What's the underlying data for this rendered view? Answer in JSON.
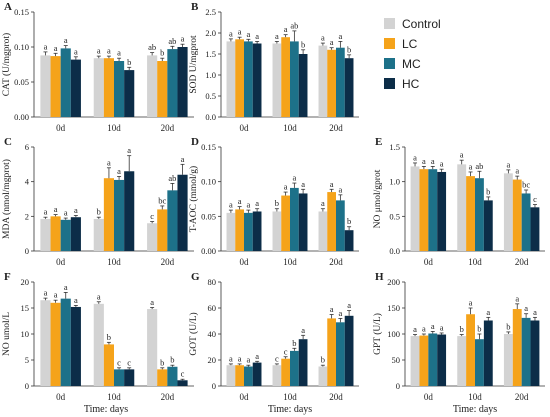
{
  "colors": {
    "Control": "#d3d3d3",
    "LC": "#f5a31a",
    "MC": "#1d7189",
    "HC": "#0c2d48"
  },
  "legend": {
    "placement": "top-right",
    "items": [
      "Control",
      "LC",
      "MC",
      "HC"
    ]
  },
  "x_axis_caption": "Time: days",
  "chart_data": [
    {
      "panel": "A",
      "type": "bar",
      "ylabel": "CAT (U/mgprot)",
      "categories": [
        "0d",
        "10d",
        "20d"
      ],
      "ylim": [
        0,
        0.15
      ],
      "yticks": [
        "0.00",
        "0.05",
        "0.10",
        "0.15"
      ],
      "series": [
        {
          "name": "Control",
          "values": [
            0.088,
            0.084,
            0.088
          ],
          "err": [
            0.005,
            0.003,
            0.004
          ]
        },
        {
          "name": "LC",
          "values": [
            0.087,
            0.084,
            0.08
          ],
          "err": [
            0.004,
            0.003,
            0.004
          ]
        },
        {
          "name": "MC",
          "values": [
            0.098,
            0.08,
            0.097
          ],
          "err": [
            0.004,
            0.004,
            0.004
          ]
        },
        {
          "name": "HC",
          "values": [
            0.082,
            0.067,
            0.1
          ],
          "err": [
            0.004,
            0.004,
            0.004
          ]
        }
      ],
      "letters": [
        [
          "a",
          "a",
          "a",
          "a"
        ],
        [
          "a",
          "a",
          "a",
          "b"
        ],
        [
          "ab",
          "b",
          "ab",
          "a"
        ]
      ]
    },
    {
      "panel": "B",
      "type": "bar",
      "ylabel": "SOD U/mgprot",
      "categories": [
        "0d",
        "10d",
        "20d"
      ],
      "ylim": [
        0,
        2.5
      ],
      "yticks": [
        "0.0",
        "0.5",
        "1.0",
        "1.5",
        "2.0",
        "2.5"
      ],
      "series": [
        {
          "name": "Control",
          "values": [
            1.8,
            1.75,
            1.7
          ],
          "err": [
            0.06,
            0.05,
            0.06
          ]
        },
        {
          "name": "LC",
          "values": [
            1.85,
            1.9,
            1.6
          ],
          "err": [
            0.05,
            0.06,
            0.05
          ]
        },
        {
          "name": "MC",
          "values": [
            1.8,
            1.8,
            1.65
          ],
          "err": [
            0.05,
            0.25,
            0.15
          ]
        },
        {
          "name": "HC",
          "values": [
            1.75,
            1.5,
            1.4
          ],
          "err": [
            0.05,
            0.1,
            0.08
          ]
        }
      ],
      "letters": [
        [
          "a",
          "a",
          "a",
          "a"
        ],
        [
          "a",
          "a",
          "ab",
          "b"
        ],
        [
          "a",
          "a",
          "a",
          "b"
        ]
      ]
    },
    {
      "panel": "C",
      "type": "bar",
      "ylabel": "MDA (nmol/mgprot)",
      "categories": [
        "0d",
        "10d",
        "20d"
      ],
      "ylim": [
        0,
        6
      ],
      "yticks": [
        "0",
        "2",
        "4",
        "6"
      ],
      "series": [
        {
          "name": "Control",
          "values": [
            1.85,
            1.85,
            1.6
          ],
          "err": [
            0.1,
            0.1,
            0.1
          ]
        },
        {
          "name": "LC",
          "values": [
            2.0,
            4.2,
            2.4
          ],
          "err": [
            0.1,
            0.6,
            0.2
          ]
        },
        {
          "name": "MC",
          "values": [
            1.8,
            4.1,
            3.5
          ],
          "err": [
            0.1,
            0.2,
            0.4
          ]
        },
        {
          "name": "HC",
          "values": [
            1.95,
            4.6,
            4.4
          ],
          "err": [
            0.1,
            0.9,
            0.6
          ]
        }
      ],
      "letters": [
        [
          "a",
          "a",
          "a",
          "a"
        ],
        [
          "b",
          "a",
          "a",
          "a"
        ],
        [
          "c",
          "bc",
          "ab",
          "a"
        ]
      ]
    },
    {
      "panel": "D",
      "type": "bar",
      "ylabel": "T-AOC (mmol/g)",
      "categories": [
        "0d",
        "10d",
        "20d"
      ],
      "ylim": [
        0,
        0.15
      ],
      "yticks": [
        "0.00",
        "0.05",
        "0.10",
        "0.15"
      ],
      "series": [
        {
          "name": "Control",
          "values": [
            0.055,
            0.057,
            0.057
          ],
          "err": [
            0.004,
            0.004,
            0.004
          ]
        },
        {
          "name": "LC",
          "values": [
            0.06,
            0.08,
            0.085
          ],
          "err": [
            0.004,
            0.005,
            0.004
          ]
        },
        {
          "name": "MC",
          "values": [
            0.055,
            0.091,
            0.073
          ],
          "err": [
            0.004,
            0.007,
            0.008
          ]
        },
        {
          "name": "HC",
          "values": [
            0.057,
            0.083,
            0.03
          ],
          "err": [
            0.004,
            0.006,
            0.005
          ]
        }
      ],
      "letters": [
        [
          "a",
          "a",
          "a",
          "a"
        ],
        [
          "b",
          "a",
          "a",
          "a"
        ],
        [
          "a",
          "a",
          "a",
          "b"
        ]
      ]
    },
    {
      "panel": "E",
      "type": "bar",
      "ylabel": "NO μmol/gprot",
      "categories": [
        "0d",
        "10d",
        "20d"
      ],
      "ylim": [
        0,
        1.5
      ],
      "yticks": [
        "0.0",
        "0.5",
        "1.0",
        "1.5"
      ],
      "series": [
        {
          "name": "Control",
          "values": [
            1.22,
            1.25,
            1.12
          ],
          "err": [
            0.05,
            0.06,
            0.05
          ]
        },
        {
          "name": "LC",
          "values": [
            1.18,
            1.08,
            1.03
          ],
          "err": [
            0.04,
            0.06,
            0.05
          ]
        },
        {
          "name": "MC",
          "values": [
            1.18,
            1.05,
            0.83
          ],
          "err": [
            0.04,
            0.1,
            0.05
          ]
        },
        {
          "name": "HC",
          "values": [
            1.14,
            0.73,
            0.63
          ],
          "err": [
            0.04,
            0.05,
            0.04
          ]
        }
      ],
      "letters": [
        [
          "a",
          "a",
          "a",
          "a"
        ],
        [
          "a",
          "a",
          "ab",
          "b"
        ],
        [
          "a",
          "a",
          "bc",
          "c"
        ]
      ]
    },
    {
      "panel": "F",
      "type": "bar",
      "ylabel": "NO umol/L",
      "categories": [
        "0d",
        "10d",
        "20d"
      ],
      "ylim": [
        0,
        20
      ],
      "yticks": [
        "0",
        "5",
        "10",
        "15",
        "20"
      ],
      "series": [
        {
          "name": "Control",
          "values": [
            16.5,
            15.8,
            14.8
          ],
          "err": [
            0.4,
            0.4,
            0.3
          ]
        },
        {
          "name": "LC",
          "values": [
            16.0,
            8.0,
            3.2
          ],
          "err": [
            0.5,
            0.4,
            0.3
          ]
        },
        {
          "name": "MC",
          "values": [
            16.8,
            3.2,
            3.7
          ],
          "err": [
            1.2,
            0.3,
            0.3
          ]
        },
        {
          "name": "HC",
          "values": [
            15.2,
            3.2,
            1.1
          ],
          "err": [
            0.3,
            0.3,
            0.2
          ]
        }
      ],
      "letters": [
        [
          "a",
          "a",
          "a",
          "a"
        ],
        [
          "a",
          "b",
          "c",
          "c"
        ],
        [
          "a",
          "b",
          "b",
          "c"
        ]
      ]
    },
    {
      "panel": "G",
      "type": "bar",
      "ylabel": "GOT (U/L)",
      "categories": [
        "0d",
        "10d",
        "20d"
      ],
      "ylim": [
        0,
        80
      ],
      "yticks": [
        "0",
        "20",
        "40",
        "60",
        "80"
      ],
      "series": [
        {
          "name": "Control",
          "values": [
            16.0,
            16.0,
            15.0
          ],
          "err": [
            1.0,
            1.0,
            1.0
          ]
        },
        {
          "name": "LC",
          "values": [
            16.0,
            21.0,
            52.0
          ],
          "err": [
            1.0,
            1.5,
            3.0
          ]
        },
        {
          "name": "MC",
          "values": [
            15.0,
            27.0,
            49.0
          ],
          "err": [
            1.0,
            2.0,
            3.0
          ]
        },
        {
          "name": "HC",
          "values": [
            18.0,
            36.0,
            54.0
          ],
          "err": [
            1.0,
            3.0,
            4.0
          ]
        }
      ],
      "letters": [
        [
          "a",
          "a",
          "a",
          "a"
        ],
        [
          "c",
          "c",
          "b",
          "a"
        ],
        [
          "b",
          "a",
          "a",
          "a"
        ]
      ]
    },
    {
      "panel": "H",
      "type": "bar",
      "ylabel": "GPT (U/L)",
      "categories": [
        "0d",
        "10d",
        "20d"
      ],
      "ylim": [
        0,
        200
      ],
      "yticks": [
        "0",
        "50",
        "100",
        "150",
        "200"
      ],
      "series": [
        {
          "name": "Control",
          "values": [
            96,
            96,
            100
          ],
          "err": [
            3,
            3,
            4
          ]
        },
        {
          "name": "LC",
          "values": [
            97,
            138,
            148
          ],
          "err": [
            3,
            12,
            10
          ]
        },
        {
          "name": "MC",
          "values": [
            101,
            90,
            131
          ],
          "err": [
            4,
            10,
            8
          ]
        },
        {
          "name": "HC",
          "values": [
            99,
            126,
            126
          ],
          "err": [
            3,
            6,
            6
          ]
        }
      ],
      "letters": [
        [
          "a",
          "a",
          "a",
          "a"
        ],
        [
          "b",
          "a",
          "b",
          "a"
        ],
        [
          "b",
          "a",
          "a",
          "a"
        ]
      ]
    }
  ]
}
